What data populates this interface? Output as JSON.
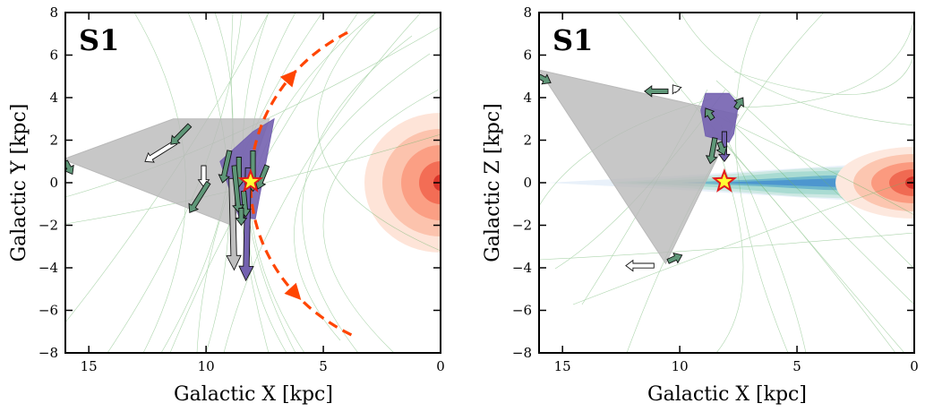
{
  "chart_data": [
    {
      "type": "scatter",
      "panel_label": "S1",
      "xlabel": "Galactic X [kpc]",
      "ylabel": "Galactic Y [kpc]",
      "xlim": [
        16,
        0
      ],
      "ylim": [
        -8,
        8
      ],
      "xticks": [
        15,
        10,
        5,
        0
      ],
      "yticks": [
        8,
        6,
        4,
        2,
        0,
        -2,
        -4,
        -6,
        -8
      ],
      "sun": {
        "x": 8.1,
        "y": 0.05
      },
      "galactic_center": {
        "x": 0,
        "y": 0
      },
      "orbit_arc": {
        "center_x": 0,
        "center_y": 0,
        "radius": 8.1,
        "color": "#ff4500"
      },
      "shaded_regions": [
        {
          "name": "grey",
          "color": "#b9b9b9",
          "points": [
            [
              16.1,
              1.1
            ],
            [
              11.4,
              3.0
            ],
            [
              7.3,
              3.0
            ],
            [
              8.9,
              -2.0
            ]
          ]
        },
        {
          "name": "purple",
          "color": "#7462b0",
          "points": [
            [
              9.4,
              1.0
            ],
            [
              8.0,
              2.4
            ],
            [
              7.1,
              3.0
            ],
            [
              7.9,
              -1.7
            ],
            [
              8.6,
              -1.6
            ]
          ]
        }
      ],
      "arrows": [
        {
          "x": 8.2,
          "y": 0.7,
          "dx": 0.1,
          "dy": -5.3,
          "color": "#7462b0"
        },
        {
          "x": 8.9,
          "y": 0.2,
          "dx": -0.1,
          "dy": -4.3,
          "color": "#bfbfbf"
        },
        {
          "x": 11.3,
          "y": 1.9,
          "dx": 1.3,
          "dy": -0.9,
          "color": "#ffffff"
        },
        {
          "x": 10.1,
          "y": 0.8,
          "dx": 0.0,
          "dy": -1.0,
          "color": "#ffffff"
        },
        {
          "x": 9.9,
          "y": 0.0,
          "dx": 0.8,
          "dy": -1.4,
          "color": "#5f9778"
        },
        {
          "x": 10.7,
          "y": 2.7,
          "dx": 0.8,
          "dy": -0.9,
          "color": "#5f9778"
        },
        {
          "x": 9.0,
          "y": 1.5,
          "dx": 0.3,
          "dy": -1.5,
          "color": "#5f9778"
        },
        {
          "x": 8.6,
          "y": 1.2,
          "dx": 0.0,
          "dy": -1.4,
          "color": "#5f9778"
        },
        {
          "x": 8.0,
          "y": 1.5,
          "dx": 0.0,
          "dy": -1.9,
          "color": "#5f9778"
        },
        {
          "x": 7.4,
          "y": 0.8,
          "dx": 0.4,
          "dy": -1.1,
          "color": "#5f9778"
        },
        {
          "x": 8.4,
          "y": -0.4,
          "dx": -0.1,
          "dy": -1.2,
          "color": "#5f9778"
        },
        {
          "x": 8.8,
          "y": 0.8,
          "dx": -0.2,
          "dy": -2.2,
          "color": "#5f9778"
        },
        {
          "x": 8.5,
          "y": -1.2,
          "dx": 0.0,
          "dy": -0.8,
          "color": "#5f9778"
        },
        {
          "x": 16.0,
          "y": 1.0,
          "dx": -0.3,
          "dy": -0.6,
          "color": "#5f9778"
        }
      ]
    },
    {
      "type": "scatter",
      "panel_label": "S1",
      "xlabel": "Galactic X [kpc]",
      "ylabel": "Galactic Z [kpc]",
      "xlim": [
        16,
        0
      ],
      "ylim": [
        -8,
        8
      ],
      "xticks": [
        15,
        10,
        5,
        0
      ],
      "yticks": [
        8,
        6,
        4,
        2,
        0,
        -2,
        -4,
        -6,
        -8
      ],
      "sun": {
        "x": 8.1,
        "y": 0.05
      },
      "galactic_center": {
        "x": 0,
        "y": 0
      },
      "shaded_regions": [
        {
          "name": "grey",
          "color": "#b9b9b9",
          "points": [
            [
              16.0,
              5.3
            ],
            [
              7.5,
              3.2
            ],
            [
              10.6,
              -3.8
            ]
          ]
        },
        {
          "name": "purple",
          "color": "#7462b0",
          "points": [
            [
              8.9,
              4.2
            ],
            [
              7.9,
              4.2
            ],
            [
              7.5,
              3.7
            ],
            [
              7.7,
              2.3
            ],
            [
              7.9,
              1.9
            ],
            [
              8.9,
              2.2
            ],
            [
              9.1,
              3.4
            ]
          ]
        }
      ],
      "arrows": [
        {
          "x": 8.1,
          "y": 2.4,
          "dx": 0.0,
          "dy": -1.4,
          "color": "#7462b0"
        },
        {
          "x": 8.5,
          "y": 2.1,
          "dx": 0.2,
          "dy": -1.2,
          "color": "#5f9778"
        },
        {
          "x": 10.5,
          "y": 4.3,
          "dx": 1.0,
          "dy": 0.0,
          "color": "#5f9778"
        },
        {
          "x": 10.1,
          "y": 4.3,
          "dx": 0.2,
          "dy": 0.3,
          "color": "#ffffff"
        },
        {
          "x": 11.1,
          "y": -3.9,
          "dx": 1.2,
          "dy": 0.0,
          "color": "#ffffff"
        },
        {
          "x": 10.5,
          "y": -3.7,
          "dx": -0.6,
          "dy": 0.3,
          "color": "#5f9778"
        },
        {
          "x": 8.6,
          "y": 3.0,
          "dx": 0.3,
          "dy": 0.5,
          "color": "#5f9778"
        },
        {
          "x": 8.3,
          "y": 1.9,
          "dx": -0.2,
          "dy": -0.6,
          "color": "#5f9778"
        },
        {
          "x": 7.6,
          "y": 3.5,
          "dx": -0.3,
          "dy": 0.5,
          "color": "#5f9778"
        },
        {
          "x": 16.0,
          "y": 5.0,
          "dx": -0.5,
          "dy": -0.3,
          "color": "#5f9778"
        }
      ]
    }
  ]
}
